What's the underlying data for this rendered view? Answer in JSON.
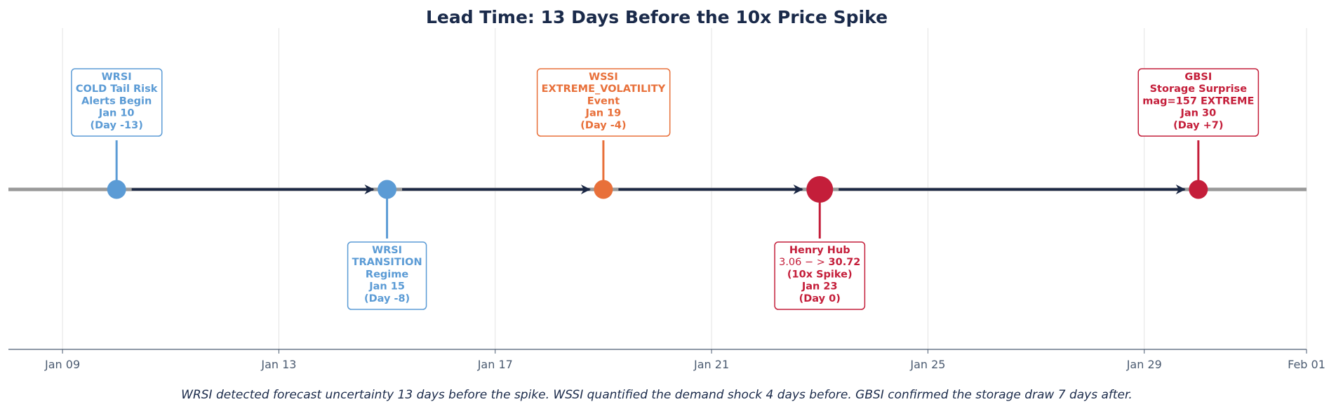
{
  "chart_data": {
    "type": "timeline",
    "title": "Lead Time: 13 Days Before the 10x Price Spike",
    "xlim": [
      "2025-01-08",
      "2025-02-01"
    ],
    "x_ticks": [
      "Jan 09",
      "Jan 13",
      "Jan 17",
      "Jan 21",
      "Jan 25",
      "Jan 29",
      "Feb 01"
    ],
    "x_tick_dates": [
      "2025-01-09",
      "2025-01-13",
      "2025-01-17",
      "2025-01-21",
      "2025-01-25",
      "2025-01-29",
      "2025-02-01"
    ],
    "grid": "vertical",
    "caption": "WRSI detected forecast uncertainty 13 days before the spike. WSSI quantified the demand shock 4 days before. GBSI confirmed the storage draw 7 days after.",
    "timeline_color": "#999999",
    "arrow_color": "#1a2744",
    "events": [
      {
        "date": "2025-01-10",
        "side": "above",
        "color": "#5b9bd5",
        "major": false,
        "lines": [
          "WRSI",
          "COLD Tail Risk",
          "Alerts Begin",
          "Jan 10",
          "(Day -13)"
        ]
      },
      {
        "date": "2025-01-15",
        "side": "below",
        "color": "#5b9bd5",
        "major": false,
        "lines": [
          "WRSI",
          "TRANSITION",
          "Regime",
          "Jan 15",
          "(Day -8)"
        ]
      },
      {
        "date": "2025-01-19",
        "side": "above",
        "color": "#e8703a",
        "major": false,
        "lines": [
          "WSSI",
          "EXTREME_VOLATILITY",
          "Event",
          "Jan 19",
          "(Day -4)"
        ]
      },
      {
        "date": "2025-01-23",
        "side": "below",
        "color": "#c41e3a",
        "major": true,
        "lines": [
          "Henry Hub",
          "3.06 − > |30.72",
          "(10x Spike)",
          "Jan 23",
          "(Day 0)"
        ]
      },
      {
        "date": "2025-01-30",
        "side": "above",
        "color": "#c41e3a",
        "major": false,
        "lines": [
          "GBSI",
          "Storage Surprise",
          "mag=157 EXTREME",
          "Jan 30",
          "(Day +7)"
        ]
      }
    ]
  }
}
